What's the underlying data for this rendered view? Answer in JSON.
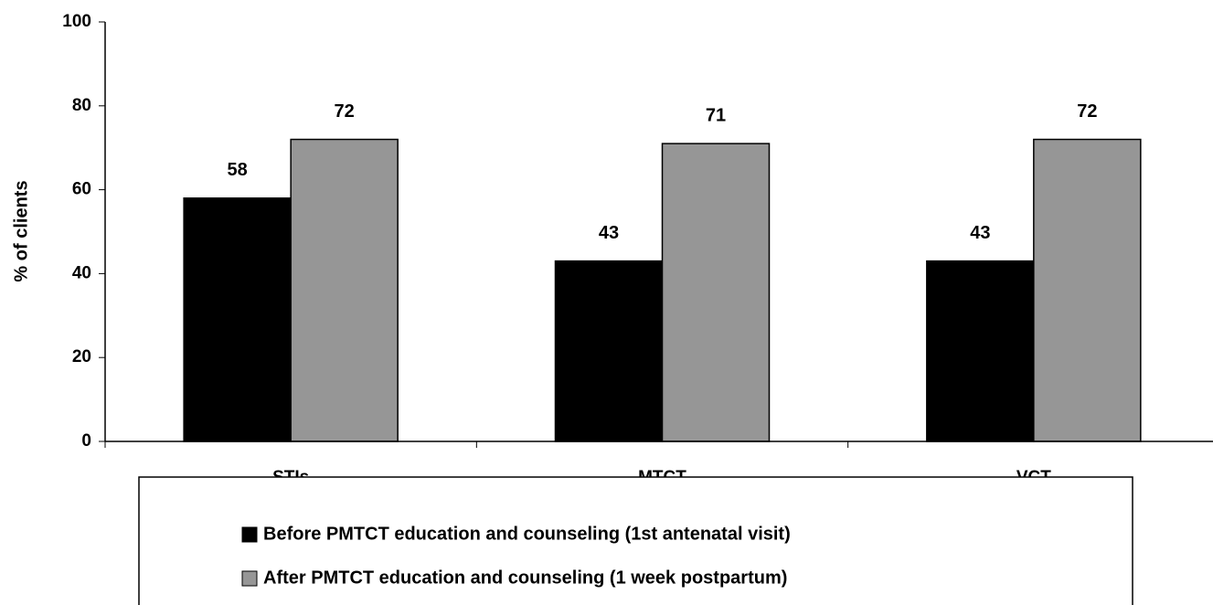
{
  "chart_data": {
    "type": "bar",
    "y_label": "% of clients",
    "categories": [
      "STIs",
      "MTCT",
      "VCT"
    ],
    "series": [
      {
        "name": "Before PMTCT education and counseling (1st antenatal visit)",
        "color": "#000000",
        "values": [
          58,
          43,
          43
        ]
      },
      {
        "name": "After PMTCT education and counseling (1 week postpartum)",
        "color": "#969696",
        "values": [
          72,
          71,
          72
        ]
      }
    ],
    "ylim": [
      0,
      100
    ],
    "yticks": [
      0,
      20,
      40,
      60,
      80,
      100
    ],
    "grid": false,
    "legend": "bottom"
  }
}
